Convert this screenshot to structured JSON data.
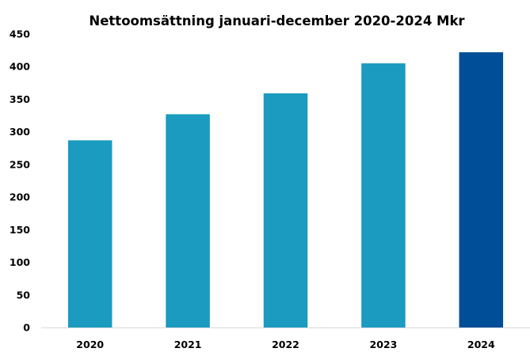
{
  "chart_data": {
    "type": "bar",
    "title": "Nettoomsättning januari-december 2020-2024 Mkr",
    "xlabel": "",
    "ylabel": "",
    "categories": [
      "2020",
      "2021",
      "2022",
      "2023",
      "2024"
    ],
    "values": [
      287,
      327,
      359,
      405,
      422
    ],
    "ylim": [
      0,
      450
    ],
    "yticks": [
      0,
      50,
      100,
      150,
      200,
      250,
      300,
      350,
      400,
      450
    ],
    "ytick_labels": [
      "0",
      "50",
      "100",
      "150",
      "200",
      "250",
      "300",
      "350",
      "400",
      "450"
    ],
    "grid": false,
    "legend": "none",
    "colors": [
      "#1a9bbf",
      "#1a9bbf",
      "#1a9bbf",
      "#1a9bbf",
      "#004e98"
    ],
    "axis_color": "#d9d9d9"
  }
}
